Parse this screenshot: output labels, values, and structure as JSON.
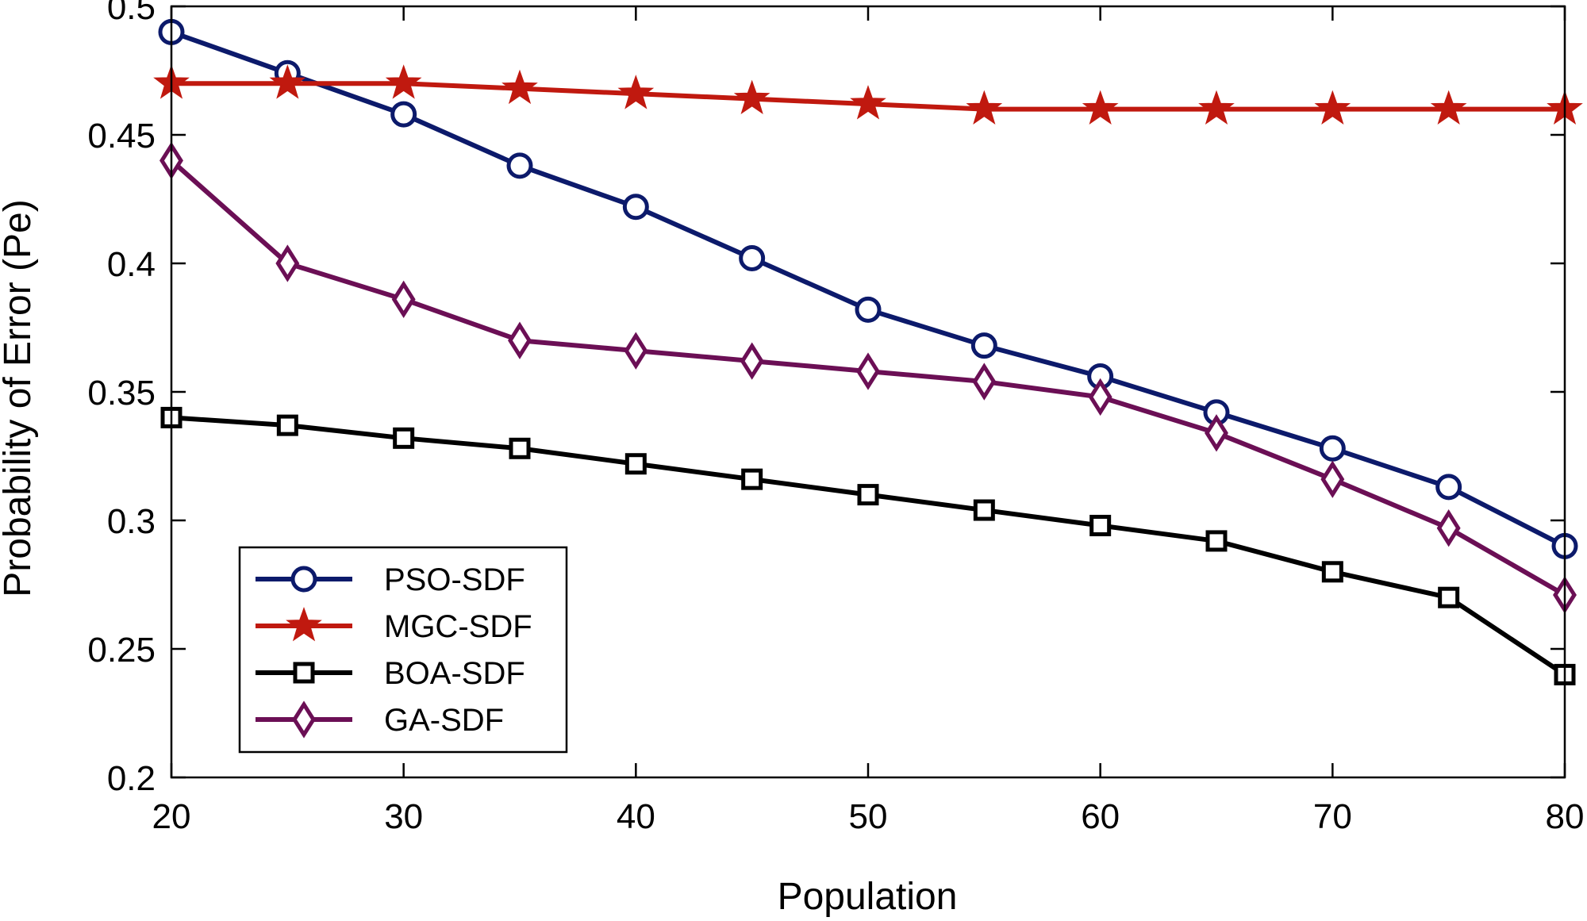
{
  "chart_data": {
    "type": "line",
    "title": "",
    "xlabel": "Population",
    "ylabel": "Probability of Error (Pe)",
    "xlim": [
      20,
      80
    ],
    "ylim": [
      0.2,
      0.5
    ],
    "x": [
      20,
      25,
      30,
      35,
      40,
      45,
      50,
      55,
      60,
      65,
      70,
      75,
      80
    ],
    "xticks": [
      20,
      30,
      40,
      50,
      60,
      70,
      80
    ],
    "xtick_labels": [
      "20",
      "30",
      "40",
      "50",
      "60",
      "70",
      "80"
    ],
    "yticks": [
      0.2,
      0.25,
      0.3,
      0.35,
      0.4,
      0.45,
      0.5
    ],
    "ytick_labels": [
      "0.2",
      "0.25",
      "0.3",
      "0.35",
      "0.4",
      "0.45",
      "0.5"
    ],
    "grid": false,
    "legend_position": "bottom-left",
    "series": [
      {
        "name": "PSO-SDF",
        "marker": "circle",
        "color": "#0c1a6b",
        "values": [
          0.49,
          0.474,
          0.458,
          0.438,
          0.422,
          0.402,
          0.382,
          0.368,
          0.356,
          0.342,
          0.328,
          0.313,
          0.29
        ]
      },
      {
        "name": "MGC-SDF",
        "marker": "star",
        "color": "#c0190f",
        "values": [
          0.47,
          0.47,
          0.47,
          0.468,
          0.466,
          0.464,
          0.462,
          0.46,
          0.46,
          0.46,
          0.46,
          0.46,
          0.46
        ]
      },
      {
        "name": "BOA-SDF",
        "marker": "square",
        "color": "#000000",
        "values": [
          0.34,
          0.337,
          0.332,
          0.328,
          0.322,
          0.316,
          0.31,
          0.304,
          0.298,
          0.292,
          0.28,
          0.27,
          0.24
        ]
      },
      {
        "name": "GA-SDF",
        "marker": "diamond",
        "color": "#6b0f55",
        "values": [
          0.44,
          0.4,
          0.386,
          0.37,
          0.366,
          0.362,
          0.358,
          0.354,
          0.348,
          0.334,
          0.316,
          0.297,
          0.271
        ]
      }
    ]
  }
}
